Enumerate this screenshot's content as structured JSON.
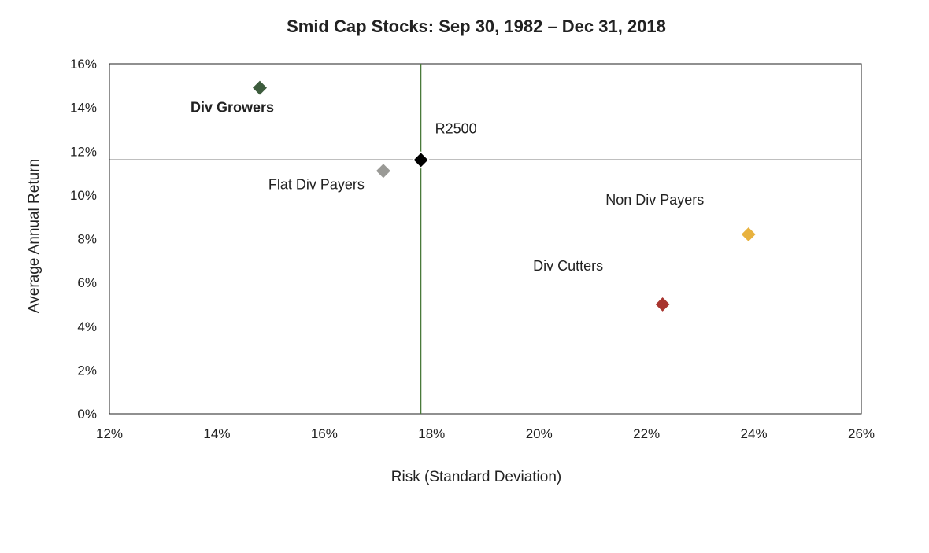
{
  "chart_data": {
    "type": "scatter",
    "title": "Smid Cap Stocks: Sep 30, 1982 – Dec 31, 2018",
    "xlabel": "Risk (Standard Deviation)",
    "ylabel": "Average Annual Return",
    "xlim": [
      12,
      26
    ],
    "ylim": [
      0,
      16
    ],
    "x_ticks": [
      12,
      14,
      16,
      18,
      20,
      22,
      24,
      26
    ],
    "y_ticks": [
      0,
      2,
      4,
      6,
      8,
      10,
      12,
      14,
      16
    ],
    "x_tick_labels": [
      "12%",
      "14%",
      "16%",
      "18%",
      "20%",
      "22%",
      "24%",
      "26%"
    ],
    "y_tick_labels": [
      "0%",
      "2%",
      "4%",
      "6%",
      "8%",
      "10%",
      "12%",
      "14%",
      "16%"
    ],
    "grid": false,
    "legend": "none",
    "reference_lines": {
      "x": 17.8,
      "y": 11.6,
      "x_color": "#4a7a3a",
      "y_color": "#000000"
    },
    "points": [
      {
        "label": "Div Growers",
        "x": 14.8,
        "y": 14.9,
        "color": "#3d5c3d",
        "bold": true
      },
      {
        "label": "R2500",
        "x": 17.8,
        "y": 11.6,
        "color": "#000000",
        "bold": false
      },
      {
        "label": "Flat Div Payers",
        "x": 17.1,
        "y": 11.1,
        "color": "#9a9a96",
        "bold": false
      },
      {
        "label": "Non Div Payers",
        "x": 23.9,
        "y": 8.2,
        "color": "#e8b23e",
        "bold": false
      },
      {
        "label": "Div Cutters",
        "x": 22.3,
        "y": 5.0,
        "color": "#a8342e",
        "bold": false
      }
    ]
  }
}
